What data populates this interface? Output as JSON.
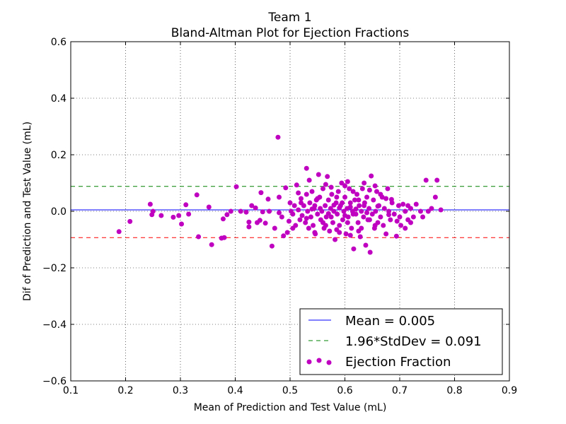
{
  "chart_data": {
    "type": "scatter",
    "title": "Team 1",
    "subtitle": "Bland-Altman Plot for Ejection Fractions",
    "xlabel": "Mean of Prediction and Test Value (mL)",
    "ylabel": "Dif of Prediction and Test Value (mL)",
    "xlim": [
      0.1,
      0.9
    ],
    "ylim": [
      -0.6,
      0.6
    ],
    "xticks": [
      0.1,
      0.2,
      0.3,
      0.4,
      0.5,
      0.6,
      0.7,
      0.8,
      0.9
    ],
    "xtick_labels": [
      "0.1",
      "0.2",
      "0.3",
      "0.4",
      "0.5",
      "0.6",
      "0.7",
      "0.8",
      "0.9"
    ],
    "yticks": [
      -0.6,
      -0.4,
      -0.2,
      0.0,
      0.2,
      0.4,
      0.6
    ],
    "ytick_labels": [
      "−0.6",
      "−0.4",
      "−0.2",
      "0.0",
      "0.2",
      "0.4",
      "0.6"
    ],
    "grid": true,
    "legend_position": "bottom-right",
    "colors": {
      "points": "#c000c0",
      "mean_line": "#0000ff",
      "sd_upper": "#008000",
      "sd_lower": "#ff0000"
    },
    "lines": {
      "mean": 0.005,
      "sd_upper": 0.088,
      "sd_lower": -0.093
    },
    "legend": [
      {
        "label": "Mean = 0.005",
        "style": "solid",
        "color": "#0000ff"
      },
      {
        "label": "1.96*StdDev = 0.091",
        "style": "dashed",
        "color": "#008000"
      },
      {
        "label": "Ejection Fraction",
        "style": "markers",
        "color": "#c000c0"
      }
    ],
    "series": [
      {
        "name": "Ejection Fraction",
        "points": [
          [
            0.188,
            -0.072
          ],
          [
            0.208,
            -0.036
          ],
          [
            0.245,
            0.025
          ],
          [
            0.25,
            0.0
          ],
          [
            0.248,
            -0.012
          ],
          [
            0.265,
            -0.015
          ],
          [
            0.287,
            -0.021
          ],
          [
            0.297,
            -0.015
          ],
          [
            0.302,
            -0.045
          ],
          [
            0.31,
            0.023
          ],
          [
            0.315,
            -0.01
          ],
          [
            0.33,
            0.058
          ],
          [
            0.333,
            -0.09
          ],
          [
            0.352,
            0.015
          ],
          [
            0.357,
            -0.118
          ],
          [
            0.375,
            -0.095
          ],
          [
            0.378,
            -0.027
          ],
          [
            0.38,
            -0.093
          ],
          [
            0.385,
            -0.012
          ],
          [
            0.392,
            0.0
          ],
          [
            0.402,
            0.087
          ],
          [
            0.41,
            0.0
          ],
          [
            0.42,
            -0.003
          ],
          [
            0.425,
            -0.038
          ],
          [
            0.425,
            -0.055
          ],
          [
            0.43,
            0.02
          ],
          [
            0.437,
            0.012
          ],
          [
            0.44,
            -0.04
          ],
          [
            0.445,
            -0.032
          ],
          [
            0.447,
            0.066
          ],
          [
            0.45,
            -0.002
          ],
          [
            0.455,
            -0.042
          ],
          [
            0.46,
            0.043
          ],
          [
            0.462,
            0.0
          ],
          [
            0.467,
            -0.123
          ],
          [
            0.472,
            -0.06
          ],
          [
            0.478,
            0.262
          ],
          [
            0.48,
            0.05
          ],
          [
            0.48,
            -0.005
          ],
          [
            0.485,
            -0.02
          ],
          [
            0.488,
            -0.087
          ],
          [
            0.492,
            0.083
          ],
          [
            0.495,
            -0.075
          ],
          [
            0.498,
            -0.035
          ],
          [
            0.502,
            0.0
          ],
          [
            0.505,
            -0.01
          ],
          [
            0.508,
            0.02
          ],
          [
            0.51,
            -0.05
          ],
          [
            0.512,
            0.093
          ],
          [
            0.515,
            0.005
          ],
          [
            0.518,
            -0.03
          ],
          [
            0.52,
            0.045
          ],
          [
            0.522,
            -0.015
          ],
          [
            0.525,
            0.02
          ],
          [
            0.528,
            -0.04
          ],
          [
            0.53,
            0.152
          ],
          [
            0.53,
            0.06
          ],
          [
            0.532,
            0.0
          ],
          [
            0.534,
            -0.06
          ],
          [
            0.536,
            0.03
          ],
          [
            0.538,
            -0.02
          ],
          [
            0.54,
            0.07
          ],
          [
            0.542,
            -0.05
          ],
          [
            0.544,
            0.01
          ],
          [
            0.546,
            -0.08
          ],
          [
            0.548,
            0.04
          ],
          [
            0.55,
            -0.01
          ],
          [
            0.552,
            0.13
          ],
          [
            0.554,
            0.05
          ],
          [
            0.556,
            -0.03
          ],
          [
            0.558,
            0.0
          ],
          [
            0.56,
            0.08
          ],
          [
            0.562,
            -0.06
          ],
          [
            0.564,
            0.02
          ],
          [
            0.566,
            -0.02
          ],
          [
            0.568,
            0.123
          ],
          [
            0.57,
            0.04
          ],
          [
            0.572,
            -0.07
          ],
          [
            0.574,
            0.01
          ],
          [
            0.576,
            0.06
          ],
          [
            0.578,
            -0.04
          ],
          [
            0.58,
            0.0
          ],
          [
            0.582,
            -0.1
          ],
          [
            0.584,
            0.03
          ],
          [
            0.586,
            -0.01
          ],
          [
            0.588,
            0.07
          ],
          [
            0.59,
            -0.05
          ],
          [
            0.592,
            0.02
          ],
          [
            0.594,
            0.1
          ],
          [
            0.596,
            -0.03
          ],
          [
            0.598,
            0.0
          ],
          [
            0.6,
            0.05
          ],
          [
            0.602,
            -0.08
          ],
          [
            0.604,
            0.01
          ],
          [
            0.606,
            -0.02
          ],
          [
            0.608,
            0.08
          ],
          [
            0.61,
            0.03
          ],
          [
            0.612,
            -0.06
          ],
          [
            0.614,
            0.0
          ],
          [
            0.616,
            -0.133
          ],
          [
            0.618,
            0.04
          ],
          [
            0.62,
            -0.01
          ],
          [
            0.622,
            0.06
          ],
          [
            0.624,
            -0.04
          ],
          [
            0.626,
            0.02
          ],
          [
            0.628,
            -0.09
          ],
          [
            0.63,
            0.0
          ],
          [
            0.632,
            0.08
          ],
          [
            0.634,
            -0.02
          ],
          [
            0.636,
            0.03
          ],
          [
            0.638,
            -0.12
          ],
          [
            0.64,
            0.05
          ],
          [
            0.642,
            -0.03
          ],
          [
            0.644,
            0.01
          ],
          [
            0.646,
            -0.145
          ],
          [
            0.648,
            0.125
          ],
          [
            0.65,
            -0.01
          ],
          [
            0.652,
            0.04
          ],
          [
            0.654,
            -0.06
          ],
          [
            0.656,
            0.0
          ],
          [
            0.658,
            0.07
          ],
          [
            0.66,
            -0.04
          ],
          [
            0.662,
            0.02
          ],
          [
            0.665,
            -0.02
          ],
          [
            0.668,
            0.05
          ],
          [
            0.67,
            -0.05
          ],
          [
            0.672,
            0.01
          ],
          [
            0.675,
            -0.08
          ],
          [
            0.678,
            0.08
          ],
          [
            0.68,
            0.0
          ],
          [
            0.683,
            -0.03
          ],
          [
            0.686,
            0.03
          ],
          [
            0.69,
            -0.01
          ],
          [
            0.694,
            -0.088
          ],
          [
            0.698,
            0.02
          ],
          [
            0.702,
            -0.05
          ],
          [
            0.706,
            0.025
          ],
          [
            0.71,
            0.0
          ],
          [
            0.715,
            -0.03
          ],
          [
            0.72,
            0.01
          ],
          [
            0.725,
            -0.02
          ],
          [
            0.73,
            0.025
          ],
          [
            0.738,
            0.0
          ],
          [
            0.742,
            -0.02
          ],
          [
            0.748,
            0.11
          ],
          [
            0.752,
            0.0
          ],
          [
            0.758,
            0.01
          ],
          [
            0.765,
            0.05
          ],
          [
            0.768,
            0.11
          ],
          [
            0.775,
            0.005
          ],
          [
            0.545,
            0.02
          ],
          [
            0.565,
            -0.05
          ],
          [
            0.585,
            0.05
          ],
          [
            0.605,
            -0.04
          ],
          [
            0.625,
            0.04
          ],
          [
            0.645,
            -0.03
          ],
          [
            0.555,
            0.01
          ],
          [
            0.575,
            -0.02
          ],
          [
            0.595,
            0.03
          ],
          [
            0.615,
            -0.01
          ],
          [
            0.635,
            0.02
          ],
          [
            0.655,
            -0.05
          ],
          [
            0.59,
            0.012
          ],
          [
            0.61,
            0.015
          ],
          [
            0.62,
            0.008
          ],
          [
            0.6,
            -0.015
          ],
          [
            0.58,
            0.022
          ],
          [
            0.57,
            -0.008
          ],
          [
            0.64,
            -0.005
          ],
          [
            0.66,
            0.018
          ],
          [
            0.68,
            -0.012
          ],
          [
            0.53,
            -0.025
          ],
          [
            0.54,
            0.008
          ],
          [
            0.56,
            -0.04
          ],
          [
            0.52,
            0.03
          ],
          [
            0.55,
            0.045
          ],
          [
            0.6,
            0.09
          ],
          [
            0.575,
            0.085
          ],
          [
            0.625,
            -0.07
          ],
          [
            0.645,
            0.075
          ],
          [
            0.665,
            0.06
          ],
          [
            0.685,
            0.042
          ],
          [
            0.7,
            -0.02
          ],
          [
            0.71,
            -0.06
          ],
          [
            0.72,
            -0.04
          ],
          [
            0.59,
            -0.075
          ],
          [
            0.61,
            -0.085
          ],
          [
            0.63,
            -0.06
          ],
          [
            0.5,
            0.03
          ],
          [
            0.505,
            -0.06
          ],
          [
            0.515,
            0.065
          ],
          [
            0.535,
            0.11
          ],
          [
            0.545,
            -0.075
          ],
          [
            0.565,
            0.095
          ],
          [
            0.585,
            -0.065
          ],
          [
            0.605,
            0.105
          ],
          [
            0.615,
            0.07
          ],
          [
            0.635,
            0.1
          ],
          [
            0.655,
            0.09
          ],
          [
            0.675,
            0.045
          ],
          [
            0.695,
            -0.035
          ],
          [
            0.715,
            0.02
          ]
        ]
      }
    ]
  }
}
